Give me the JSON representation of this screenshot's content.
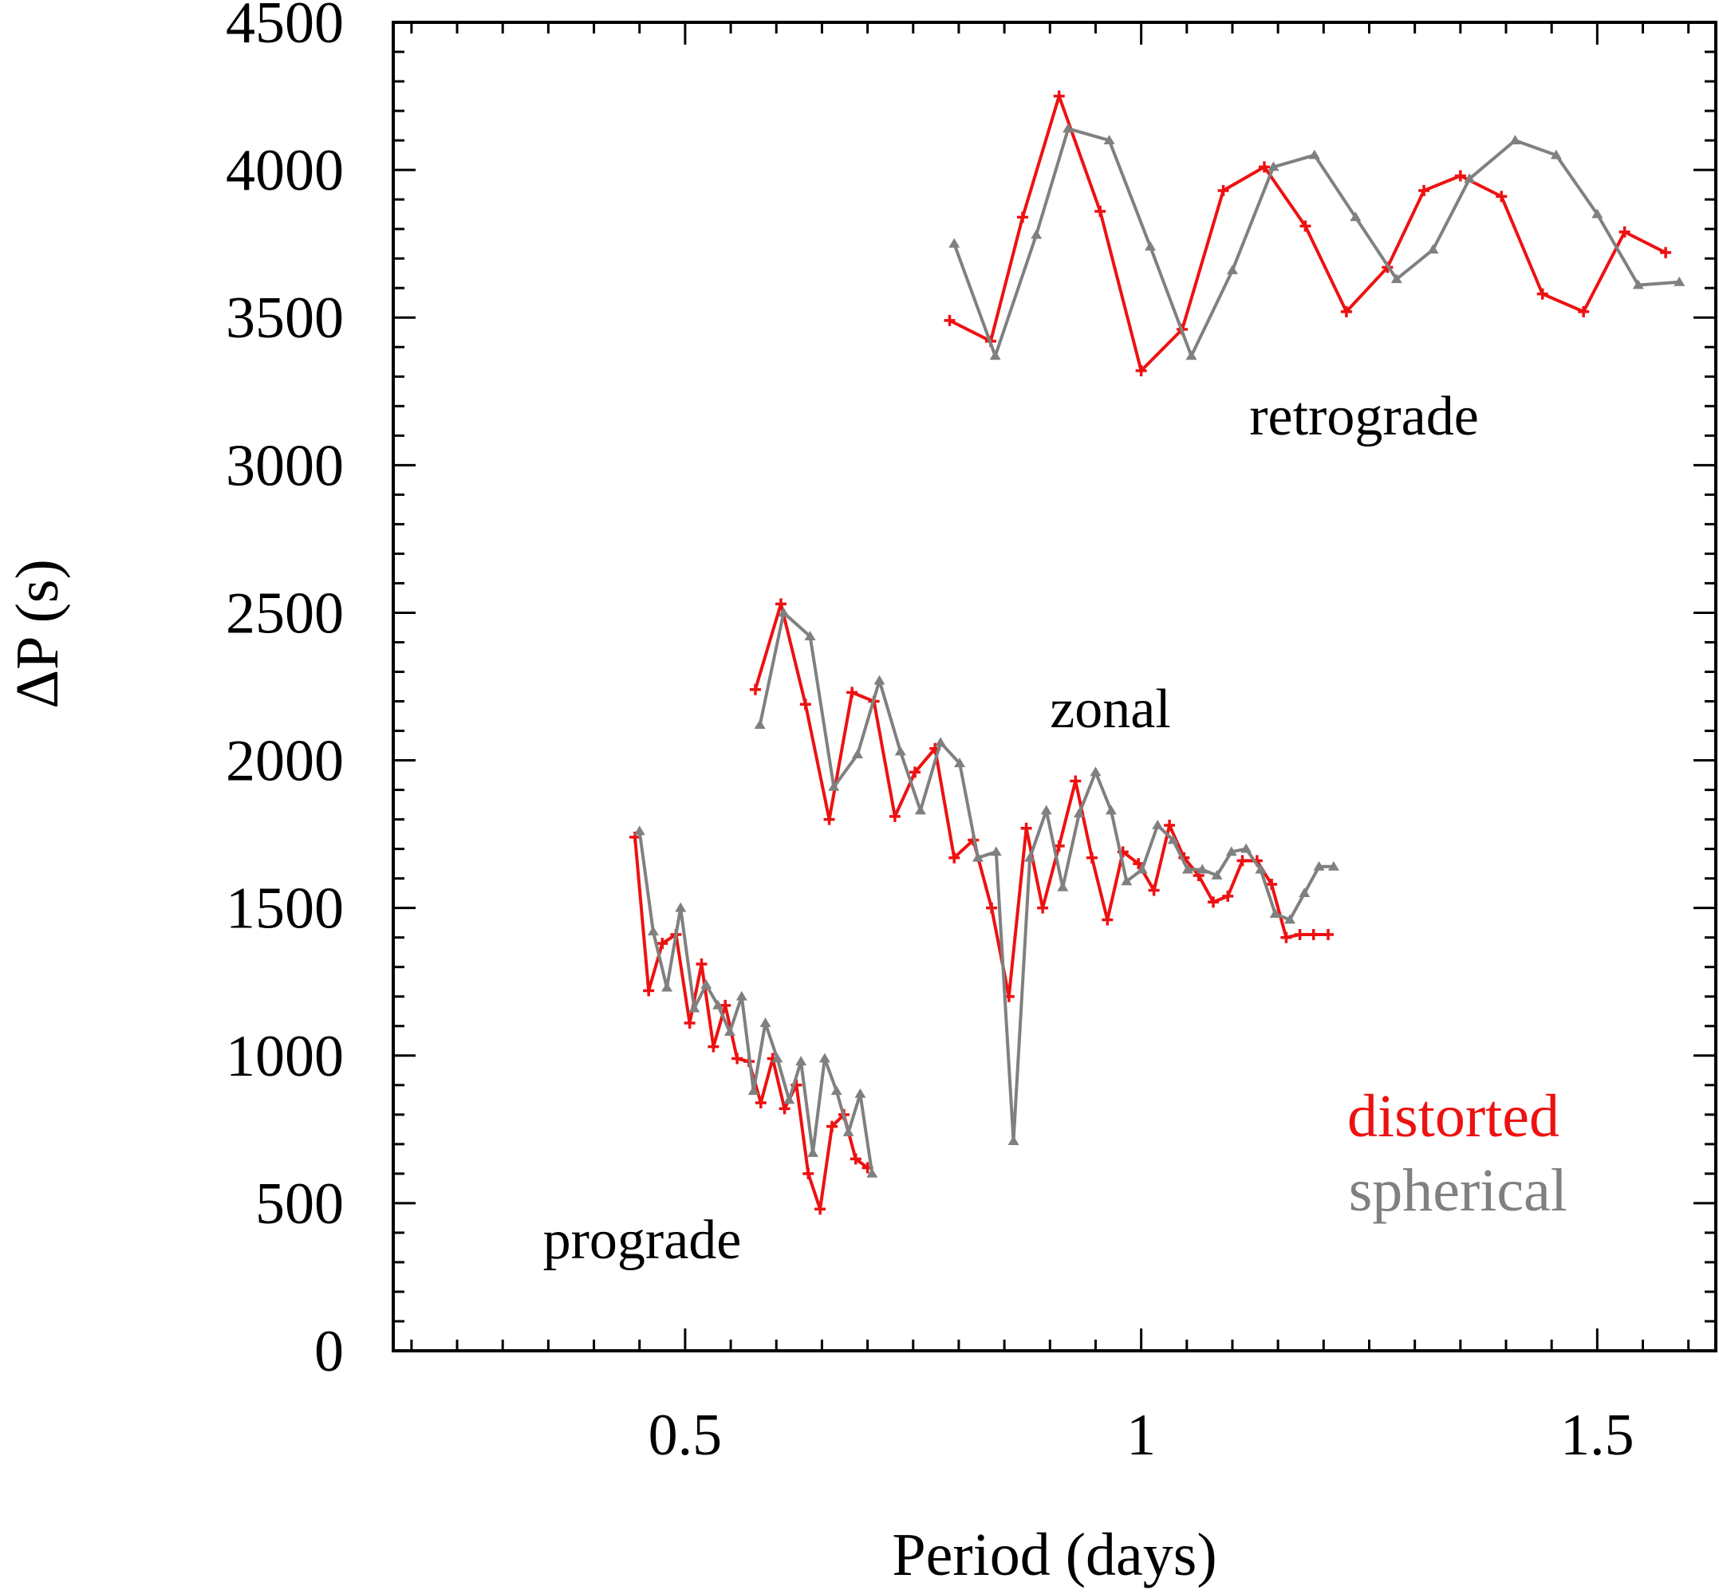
{
  "chart_data": {
    "type": "line",
    "title": "",
    "xlabel": "Period (days)",
    "ylabel": "ΔP (s)",
    "xlim": [
      0.18,
      1.63
    ],
    "ylim": [
      0,
      4500
    ],
    "xticks": [
      0.5,
      1,
      1.5
    ],
    "xtick_labels": [
      "0.5",
      "1",
      "1.5"
    ],
    "yticks": [
      0,
      500,
      1000,
      1500,
      2000,
      2500,
      3000,
      3500,
      4000,
      4500
    ],
    "ytick_labels": [
      "0",
      "500",
      "1000",
      "1500",
      "2000",
      "2500",
      "3000",
      "3500",
      "4000",
      "4500"
    ],
    "grid": false,
    "legend": [
      {
        "label": "distorted",
        "color": "#ee1111",
        "marker": "plus"
      },
      {
        "label": "spherical",
        "color": "#808080",
        "marker": "triangle"
      }
    ],
    "annotations": [
      {
        "text": "retrograde"
      },
      {
        "text": "zonal"
      },
      {
        "text": "prograde"
      }
    ],
    "series": [
      {
        "name": "retrograde distorted",
        "group": "distorted",
        "color": "#ee1111",
        "marker": "plus",
        "x": [
          0.79,
          0.835,
          0.87,
          0.91,
          0.955,
          1.0,
          1.045,
          1.09,
          1.135,
          1.18,
          1.225,
          1.27,
          1.31,
          1.35,
          1.395,
          1.44,
          1.485,
          1.53,
          1.575
        ],
        "y": [
          3490,
          3420,
          3840,
          4250,
          3860,
          3320,
          3460,
          3930,
          4010,
          3810,
          3520,
          3670,
          3930,
          3980,
          3910,
          3580,
          3520,
          3790,
          3720
        ]
      },
      {
        "name": "retrograde spherical",
        "group": "spherical",
        "color": "#808080",
        "marker": "triangle",
        "x": [
          0.795,
          0.84,
          0.885,
          0.92,
          0.965,
          1.01,
          1.055,
          1.1,
          1.145,
          1.19,
          1.235,
          1.28,
          1.32,
          1.36,
          1.41,
          1.455,
          1.5,
          1.545,
          1.59
        ],
        "y": [
          3750,
          3370,
          3780,
          4140,
          4100,
          3740,
          3370,
          3660,
          4010,
          4050,
          3840,
          3630,
          3730,
          3970,
          4100,
          4050,
          3850,
          3610,
          3620
        ]
      },
      {
        "name": "zonal distorted",
        "group": "distorted",
        "color": "#ee1111",
        "marker": "plus",
        "x": [
          0.577,
          0.605,
          0.632,
          0.658,
          0.683,
          0.707,
          0.73,
          0.752,
          0.774,
          0.795,
          0.816,
          0.836,
          0.855,
          0.874,
          0.892,
          0.91,
          0.928,
          0.946,
          0.963,
          0.98,
          0.997,
          1.014,
          1.031,
          1.047,
          1.063,
          1.079,
          1.095,
          1.111,
          1.127,
          1.143,
          1.159,
          1.174,
          1.189,
          1.205
        ],
        "y": [
          2240,
          2530,
          2190,
          1800,
          2230,
          2200,
          1810,
          1960,
          2040,
          1670,
          1730,
          1500,
          1200,
          1770,
          1500,
          1710,
          1930,
          1670,
          1460,
          1690,
          1650,
          1560,
          1780,
          1670,
          1610,
          1520,
          1540,
          1660,
          1660,
          1580,
          1400,
          1410,
          1410,
          1410
        ]
      },
      {
        "name": "zonal spherical",
        "group": "spherical",
        "color": "#808080",
        "marker": "triangle",
        "x": [
          0.582,
          0.608,
          0.637,
          0.663,
          0.689,
          0.713,
          0.736,
          0.758,
          0.78,
          0.801,
          0.821,
          0.841,
          0.86,
          0.878,
          0.896,
          0.914,
          0.932,
          0.95,
          0.967,
          0.984,
          1.001,
          1.018,
          1.035,
          1.051,
          1.067,
          1.083,
          1.099,
          1.115,
          1.131,
          1.147,
          1.163,
          1.179,
          1.195,
          1.211
        ],
        "y": [
          2120,
          2500,
          2420,
          1910,
          2020,
          2270,
          2030,
          1830,
          2060,
          1990,
          1670,
          1690,
          710,
          1670,
          1830,
          1570,
          1820,
          1960,
          1830,
          1590,
          1630,
          1780,
          1730,
          1630,
          1630,
          1610,
          1690,
          1700,
          1630,
          1480,
          1460,
          1550,
          1640,
          1640
        ]
      },
      {
        "name": "prograde distorted",
        "group": "distorted",
        "color": "#ee1111",
        "marker": "plus",
        "x": [
          0.445,
          0.46,
          0.475,
          0.49,
          0.505,
          0.518,
          0.531,
          0.544,
          0.557,
          0.57,
          0.583,
          0.596,
          0.609,
          0.622,
          0.635,
          0.648,
          0.661,
          0.674,
          0.687,
          0.7
        ],
        "y": [
          1740,
          1220,
          1380,
          1410,
          1110,
          1310,
          1030,
          1170,
          990,
          980,
          840,
          990,
          820,
          900,
          600,
          480,
          760,
          800,
          650,
          620
        ]
      },
      {
        "name": "prograde spherical",
        "group": "spherical",
        "color": "#808080",
        "marker": "triangle",
        "x": [
          0.45,
          0.465,
          0.48,
          0.495,
          0.51,
          0.523,
          0.536,
          0.549,
          0.562,
          0.575,
          0.588,
          0.601,
          0.614,
          0.627,
          0.64,
          0.653,
          0.666,
          0.679,
          0.692,
          0.705
        ],
        "y": [
          1760,
          1420,
          1230,
          1500,
          1160,
          1240,
          1170,
          1080,
          1200,
          880,
          1110,
          990,
          850,
          980,
          670,
          990,
          880,
          740,
          870,
          600
        ]
      }
    ]
  }
}
